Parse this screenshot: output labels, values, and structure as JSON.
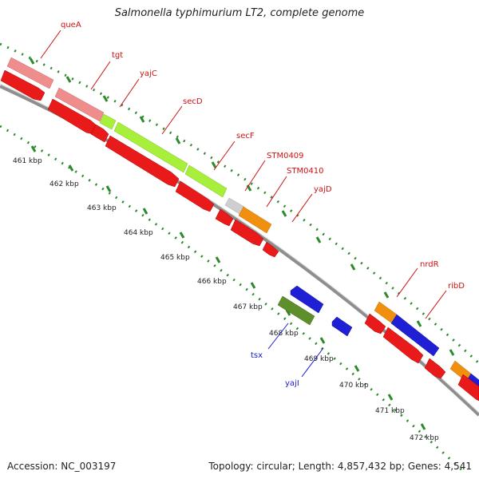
{
  "title": "Salmonella typhimurium LT2, complete genome",
  "footer": {
    "accession": "Accession: NC_003197",
    "summary": "Topology: circular; Length: 4,857,432 bp; Genes: 4,541"
  },
  "colors": {
    "backbone": "#8e8e8e",
    "tick": "#2c8a2c",
    "cds_forward": "#e81a1a",
    "cds_reverse": "#1f1fd6",
    "label_forward": "#cc1111",
    "label_reverse": "#1a1acc",
    "pink": "#ef8c8c",
    "lime": "#a8ef3c",
    "orange": "#f0900e",
    "grey": "#cfcfcf",
    "olive": "#5f8f2a"
  },
  "scale": {
    "ticks": [
      {
        "label": "461 kbp",
        "kbp": 461
      },
      {
        "label": "462 kbp",
        "kbp": 462
      },
      {
        "label": "463 kbp",
        "kbp": 463
      },
      {
        "label": "464 kbp",
        "kbp": 464
      },
      {
        "label": "465 kbp",
        "kbp": 465
      },
      {
        "label": "466 kbp",
        "kbp": 466
      },
      {
        "label": "467 kbp",
        "kbp": 467
      },
      {
        "label": "468 kbp",
        "kbp": 468
      },
      {
        "label": "469 kbp",
        "kbp": 469
      },
      {
        "label": "470 kbp",
        "kbp": 470
      },
      {
        "label": "471 kbp",
        "kbp": 471
      },
      {
        "label": "472 kbp",
        "kbp": 472
      }
    ]
  },
  "genes": [
    {
      "name": "queA",
      "strand": "forward",
      "color": "pink"
    },
    {
      "name": "tgt",
      "strand": "forward",
      "color": "pink"
    },
    {
      "name": "yajC",
      "strand": "forward",
      "color": "lime"
    },
    {
      "name": "secD",
      "strand": "forward",
      "color": "lime"
    },
    {
      "name": "secF",
      "strand": "forward",
      "color": "lime"
    },
    {
      "name": "STM0409",
      "strand": "forward",
      "color": "grey"
    },
    {
      "name": "STM0410",
      "strand": "forward",
      "color": "orange"
    },
    {
      "name": "yajD",
      "strand": "forward",
      "color": "red"
    },
    {
      "name": "tsx",
      "strand": "reverse",
      "color": "olive"
    },
    {
      "name": "yajI",
      "strand": "reverse",
      "color": "blue"
    },
    {
      "name": "nrdR",
      "strand": "forward",
      "color": "orange"
    },
    {
      "name": "ribD",
      "strand": "forward",
      "color": "blue"
    }
  ]
}
